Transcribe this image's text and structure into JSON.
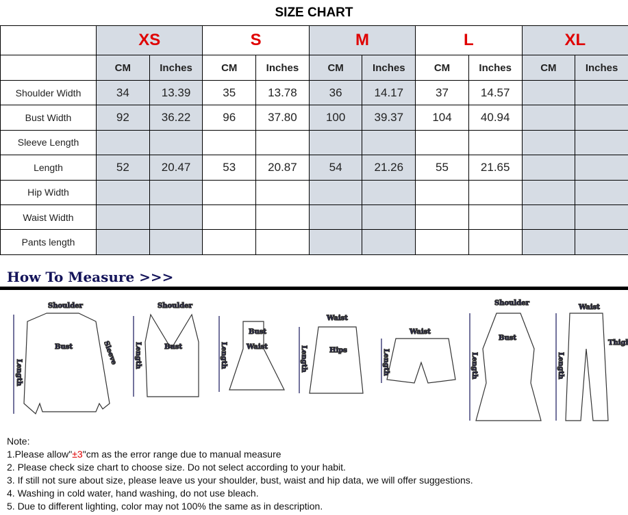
{
  "title": "SIZE CHART",
  "sizes": [
    "XS",
    "S",
    "M",
    "L",
    "XL"
  ],
  "units": [
    "CM",
    "Inches"
  ],
  "rows": [
    {
      "label": "Shoulder Width",
      "values": [
        "34",
        "13.39",
        "35",
        "13.78",
        "36",
        "14.17",
        "37",
        "14.57",
        "",
        ""
      ]
    },
    {
      "label": "Bust Width",
      "values": [
        "92",
        "36.22",
        "96",
        "37.80",
        "100",
        "39.37",
        "104",
        "40.94",
        "",
        ""
      ]
    },
    {
      "label": "Sleeve Length",
      "values": [
        "",
        "",
        "",
        "",
        "",
        "",
        "",
        "",
        "",
        ""
      ]
    },
    {
      "label": "Length",
      "values": [
        "52",
        "20.47",
        "53",
        "20.87",
        "54",
        "21.26",
        "55",
        "21.65",
        "",
        ""
      ]
    },
    {
      "label": "Hip Width",
      "values": [
        "",
        "",
        "",
        "",
        "",
        "",
        "",
        "",
        "",
        ""
      ]
    },
    {
      "label": "Waist Width",
      "values": [
        "",
        "",
        "",
        "",
        "",
        "",
        "",
        "",
        "",
        ""
      ]
    },
    {
      "label": "Pants length",
      "values": [
        "",
        "",
        "",
        "",
        "",
        "",
        "",
        "",
        "",
        ""
      ]
    }
  ],
  "shade_color": "#d6dce4",
  "size_color": "#e00000",
  "how_to_measure": "How To Measure >>>",
  "measure_labels": {
    "shoulder": "Shoulder",
    "bust": "Bust",
    "length": "Length",
    "sleeve": "Sleeve",
    "waist": "Waist",
    "hips": "Hips",
    "thigh": "Thigh"
  },
  "notes": {
    "heading": "Note:",
    "n1_pre": "1.Please allow\"",
    "n1_red": "±3",
    "n1_post": "\"cm as the error range due to manual measure",
    "n2": "2. Please check size chart to choose size. Do not select according to your habit.",
    "n3": "3. If still not sure about size, please leave us your shoulder, bust, waist and hip data, we will offer suggestions.",
    "n4": "4. Washing in cold water, hand washing, do not use bleach.",
    "n5": "5. Due to different lighting, color may not 100% the same as in description."
  }
}
